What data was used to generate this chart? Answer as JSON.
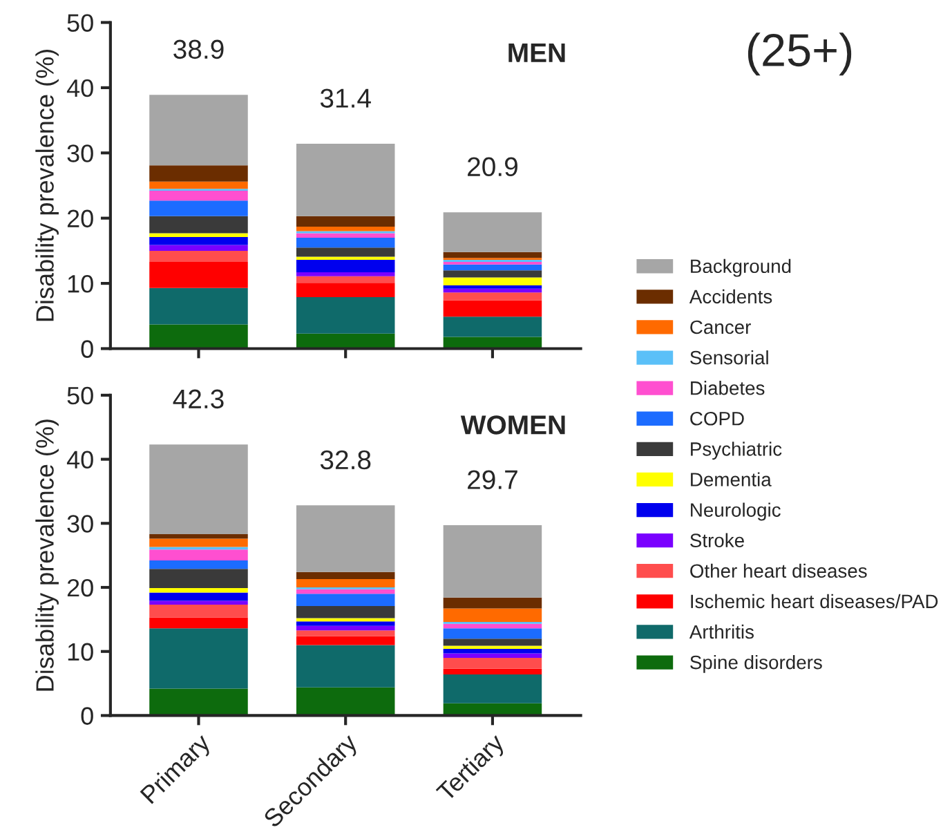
{
  "chart_data": [
    {
      "type": "bar",
      "title": "MEN",
      "ylabel": "Disability prevalence (%)",
      "categories": [
        null,
        null,
        null
      ],
      "stacked": true,
      "ylim": [
        0,
        50
      ],
      "yticks": [
        0,
        10,
        20,
        30,
        40,
        50
      ],
      "tick_labels": "y",
      "grid": false,
      "legend": "right",
      "totals": [
        "38.9",
        "31.4",
        "20.9"
      ],
      "annotations": [
        "(25+)"
      ],
      "series": [
        {
          "name": "Spine disorders",
          "color": "#0d6b0d",
          "values": [
            3.7,
            2.3,
            1.8
          ]
        },
        {
          "name": "Arthritis",
          "color": "#0f6a6a",
          "values": [
            5.6,
            5.6,
            3.1
          ]
        },
        {
          "name": "Ischemic heart diseases/PAD",
          "color": "#ff0000",
          "values": [
            4.0,
            2.2,
            2.5
          ]
        },
        {
          "name": "Other heart diseases",
          "color": "#ff4d4d",
          "values": [
            1.7,
            1.0,
            1.2
          ]
        },
        {
          "name": "Stroke",
          "color": "#7a00ff",
          "values": [
            0.9,
            0.6,
            0.6
          ]
        },
        {
          "name": "Neurologic",
          "color": "#0000ee",
          "values": [
            1.2,
            1.9,
            0.5
          ]
        },
        {
          "name": "Dementia",
          "color": "#ffff00",
          "values": [
            0.6,
            0.5,
            1.2
          ]
        },
        {
          "name": "Psychiatric",
          "color": "#3a3a3a",
          "values": [
            2.6,
            1.4,
            1.1
          ]
        },
        {
          "name": "COPD",
          "color": "#1c6cff",
          "values": [
            2.4,
            1.5,
            0.9
          ]
        },
        {
          "name": "Diabetes",
          "color": "#ff4fd0",
          "values": [
            1.5,
            0.7,
            0.4
          ]
        },
        {
          "name": "Sensorial",
          "color": "#5bc0f8",
          "values": [
            0.3,
            0.3,
            0.3
          ]
        },
        {
          "name": "Cancer",
          "color": "#ff6a00",
          "values": [
            1.1,
            0.7,
            0.3
          ]
        },
        {
          "name": "Accidents",
          "color": "#6b2d00",
          "values": [
            2.5,
            1.6,
            0.9
          ]
        },
        {
          "name": "Background",
          "color": "#a6a6a6",
          "values": [
            10.8,
            11.1,
            6.1
          ]
        }
      ]
    },
    {
      "type": "bar",
      "title": "WOMEN",
      "ylabel": "Disability prevalence (%)",
      "categories": [
        "Primary",
        "Secondary",
        "Tertiary"
      ],
      "stacked": true,
      "ylim": [
        0,
        50
      ],
      "yticks": [
        0,
        10,
        20,
        30,
        40,
        50
      ],
      "grid": false,
      "totals": [
        "42.3",
        "32.8",
        "29.7"
      ],
      "series": [
        {
          "color": "#0d6b0d",
          "values": [
            4.2,
            4.4,
            1.9
          ]
        },
        {
          "color": "#0f6a6a",
          "values": [
            9.4,
            6.6,
            4.5
          ]
        },
        {
          "color": "#ff0000",
          "values": [
            1.7,
            1.4,
            0.9
          ]
        },
        {
          "color": "#ff4d4d",
          "values": [
            2.0,
            0.9,
            1.7
          ]
        },
        {
          "color": "#7a00ff",
          "values": [
            0.6,
            0.7,
            0.7
          ]
        },
        {
          "color": "#0000ee",
          "values": [
            1.3,
            0.7,
            0.7
          ]
        },
        {
          "color": "#ffff00",
          "values": [
            0.7,
            0.5,
            0.5
          ]
        },
        {
          "color": "#3a3a3a",
          "values": [
            3.0,
            1.9,
            1.1
          ]
        },
        {
          "color": "#1c6cff",
          "values": [
            1.3,
            1.9,
            1.6
          ]
        },
        {
          "color": "#ff4fd0",
          "values": [
            1.7,
            0.7,
            0.7
          ]
        },
        {
          "color": "#5bc0f8",
          "values": [
            0.4,
            0.3,
            0.3
          ]
        },
        {
          "color": "#ff6a00",
          "values": [
            1.3,
            1.3,
            2.1
          ]
        },
        {
          "color": "#6b2d00",
          "values": [
            0.7,
            1.1,
            1.7
          ]
        },
        {
          "color": "#a6a6a6",
          "values": [
            14.0,
            10.4,
            11.3
          ]
        }
      ]
    }
  ]
}
